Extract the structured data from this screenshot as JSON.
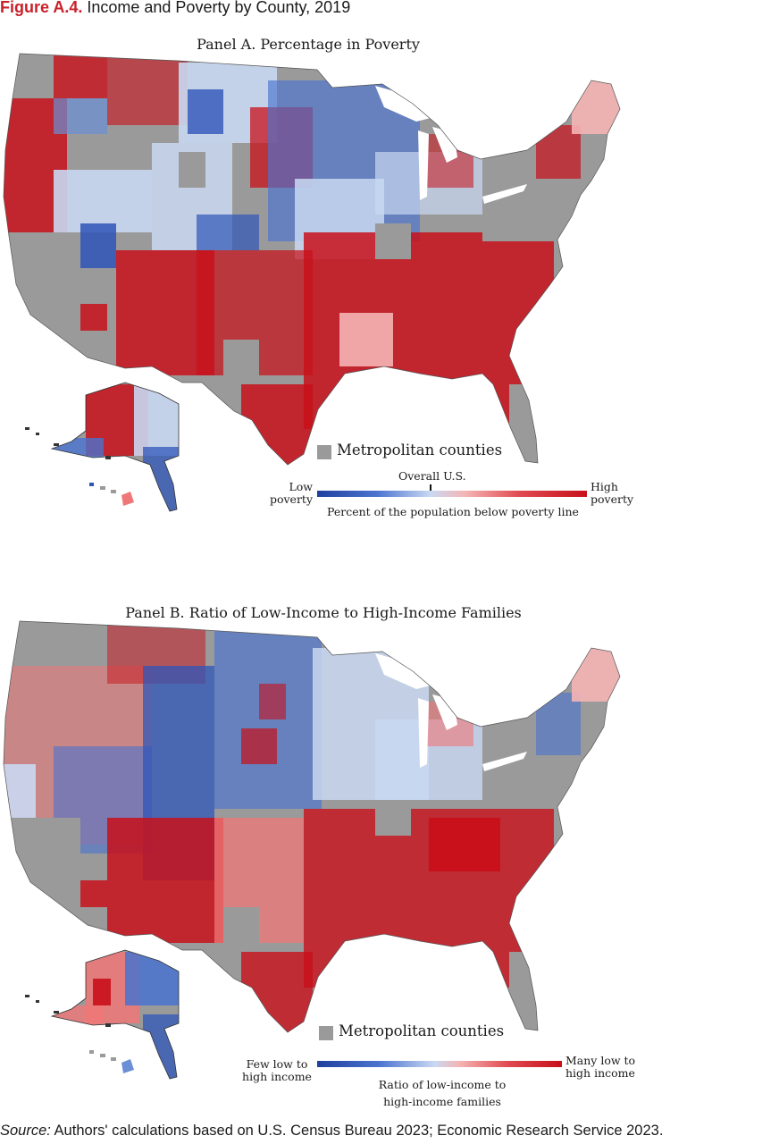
{
  "figure": {
    "label": "Figure A.4.",
    "title": " Income and Poverty by County, 2019"
  },
  "colors": {
    "metro_gray": "#9a9a9a",
    "low_blue": "#1f3f9f",
    "light_blue": "#c9d8f2",
    "light_red": "#f5b5b5",
    "high_red": "#c8101a",
    "title_red": "#c9202a"
  },
  "panel_a": {
    "title": "Panel A. Percentage in Poverty",
    "metro_label": "Metropolitan counties",
    "legend": {
      "left_label": "Low\npoverty",
      "right_label": "High\npoverty",
      "reference_label": "Overall U.S.",
      "caption": "Percent of the population below poverty line"
    }
  },
  "panel_b": {
    "title": "Panel B. Ratio of Low-Income to High-Income Families",
    "metro_label": "Metropolitan counties",
    "legend": {
      "left_label": "Few low to\nhigh income",
      "right_label": "Many low to\nhigh income",
      "caption": "Ratio of low-income to\nhigh-income families"
    }
  },
  "source": {
    "label": "Source:",
    "text": " Authors' calculations based on U.S. Census Bureau 2023; Economic Research Service 2023."
  }
}
